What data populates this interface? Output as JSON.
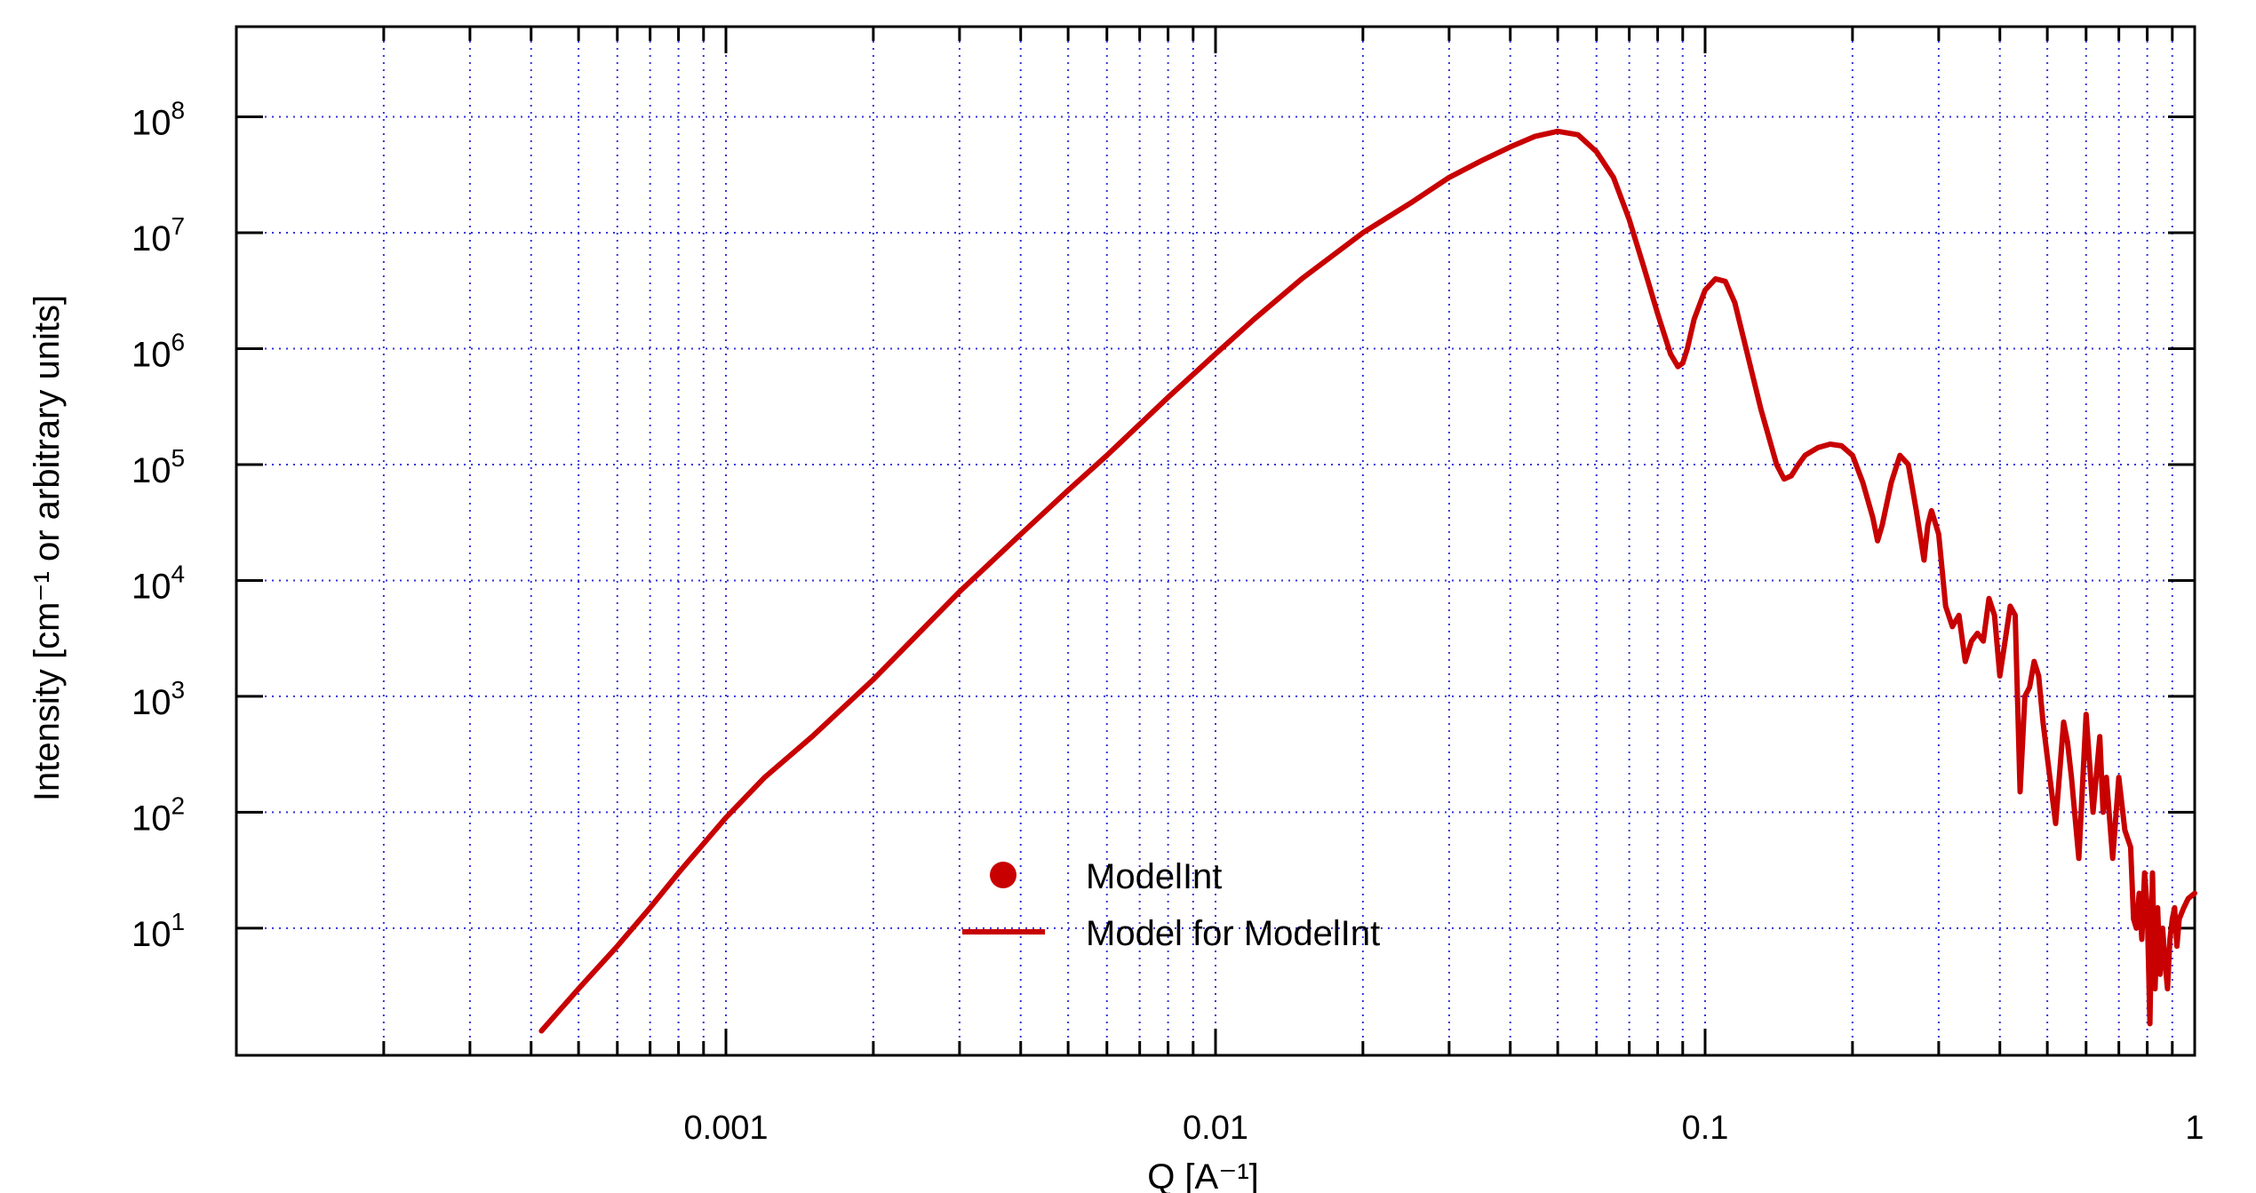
{
  "chart_data": {
    "type": "line",
    "xscale": "log",
    "yscale": "log",
    "xlim": [
      0.0001,
      1
    ],
    "ylim": [
      0.8,
      600000000
    ],
    "grid": true,
    "xlabel": "Q [A⁻¹]",
    "ylabel": "Intensity [cm⁻¹ or arbitrary units]",
    "xticks": [
      {
        "value": 0.001,
        "label": "0.001"
      },
      {
        "value": 0.01,
        "label": "0.01"
      },
      {
        "value": 0.1,
        "label": "0.1"
      },
      {
        "value": 1,
        "label": "1"
      }
    ],
    "yticks": [
      {
        "value": 10,
        "base": "10",
        "exp": "1"
      },
      {
        "value": 100,
        "base": "10",
        "exp": "2"
      },
      {
        "value": 1000,
        "base": "10",
        "exp": "3"
      },
      {
        "value": 10000,
        "base": "10",
        "exp": "4"
      },
      {
        "value": 100000,
        "base": "10",
        "exp": "5"
      },
      {
        "value": 1000000,
        "base": "10",
        "exp": "6"
      },
      {
        "value": 10000000,
        "base": "10",
        "exp": "7"
      },
      {
        "value": 100000000,
        "base": "10",
        "exp": "8"
      }
    ],
    "legend": {
      "placement": "bottom-center",
      "entries": [
        {
          "label": "ModelInt",
          "symbol": "marker"
        },
        {
          "label": "Model for ModelInt",
          "symbol": "line"
        }
      ]
    },
    "series": [
      {
        "name": "Model for ModelInt",
        "color": "#c80000",
        "x": [
          0.00042,
          0.0005,
          0.0006,
          0.0007,
          0.0008,
          0.001,
          0.0012,
          0.0015,
          0.002,
          0.003,
          0.004,
          0.005,
          0.006,
          0.008,
          0.01,
          0.012,
          0.015,
          0.02,
          0.025,
          0.03,
          0.035,
          0.04,
          0.045,
          0.05,
          0.055,
          0.06,
          0.065,
          0.07,
          0.075,
          0.08,
          0.085,
          0.088,
          0.09,
          0.092,
          0.095,
          0.1,
          0.105,
          0.11,
          0.115,
          0.12,
          0.13,
          0.14,
          0.145,
          0.15,
          0.155,
          0.16,
          0.17,
          0.18,
          0.19,
          0.2,
          0.21,
          0.22,
          0.225,
          0.23,
          0.24,
          0.25,
          0.26,
          0.27,
          0.28,
          0.285,
          0.29,
          0.3,
          0.31,
          0.32,
          0.33,
          0.34,
          0.35,
          0.36,
          0.37,
          0.38,
          0.39,
          0.4,
          0.41,
          0.42,
          0.43,
          0.44,
          0.45,
          0.46,
          0.47,
          0.48,
          0.49,
          0.5,
          0.52,
          0.54,
          0.55,
          0.56,
          0.58,
          0.6,
          0.62,
          0.64,
          0.65,
          0.66,
          0.68,
          0.7,
          0.72,
          0.74,
          0.75,
          0.76,
          0.77,
          0.78,
          0.79,
          0.8,
          0.81,
          0.82,
          0.83,
          0.84,
          0.85,
          0.86,
          0.87,
          0.88,
          0.89,
          0.9,
          0.91,
          0.92,
          0.93,
          0.95,
          0.97,
          1.0
        ],
        "y": [
          1.3,
          3.0,
          7.0,
          15,
          30,
          90,
          200,
          450,
          1400,
          8000,
          25000,
          60000,
          120000,
          380000,
          900000,
          1800000,
          4000000,
          10000000,
          18000000,
          30000000,
          42000000,
          55000000,
          68000000,
          75000000,
          70000000,
          50000000,
          30000000,
          13000000,
          5000000,
          2000000,
          900000,
          700000,
          750000,
          1000000,
          1800000,
          3200000,
          4000000,
          3800000,
          2500000,
          1200000,
          300000,
          100000,
          75000,
          80000,
          100000,
          120000,
          140000,
          150000,
          145000,
          120000,
          70000,
          35000,
          22000,
          30000,
          70000,
          120000,
          100000,
          40000,
          15000,
          30000,
          40000,
          25000,
          6000,
          4000,
          5000,
          2000,
          3000,
          3500,
          3000,
          7000,
          5000,
          1500,
          3000,
          6000,
          5000,
          150,
          1000,
          1200,
          2000,
          1500,
          600,
          300,
          80,
          600,
          400,
          200,
          40,
          700,
          100,
          450,
          100,
          200,
          40,
          200,
          70,
          50,
          12,
          10,
          20,
          8,
          30,
          15,
          1.5,
          30,
          3,
          15,
          4,
          10,
          5,
          3,
          8,
          12,
          15,
          7,
          12,
          15,
          18,
          20
        ]
      }
    ]
  }
}
